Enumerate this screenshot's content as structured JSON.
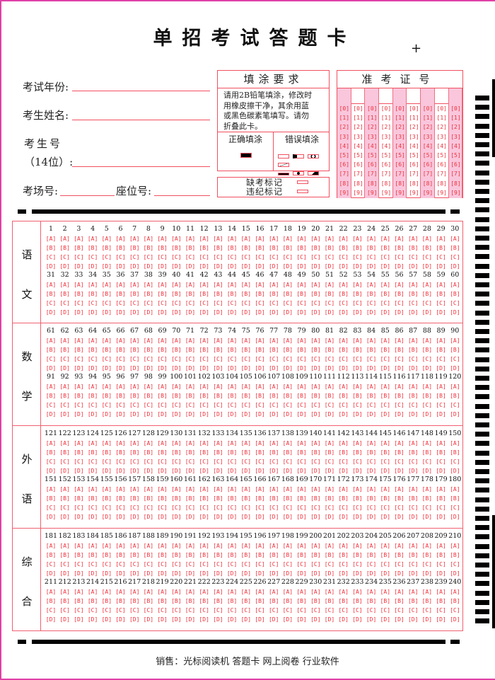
{
  "header": {
    "title": "单招考试答题卡",
    "crosshair": "+"
  },
  "fields": {
    "exam_year": "考试年份:",
    "name": "考生姓名:",
    "student_no_line1": "考生号",
    "student_no_line2": "（14位）:",
    "room_no": "考场号:",
    "seat_no": "座位号:"
  },
  "fill_rules": {
    "title": "填涂要求",
    "lines": [
      "请用2B铅笔填涂，修改时",
      "用橡皮擦干净，其余用蓝",
      "或黑色碳素笔填写。请勿",
      "折叠此卡。"
    ],
    "correct_label": "正确填涂",
    "wrong_label": "错误填涂"
  },
  "marks": {
    "absent": "缺考标记",
    "violation": "违纪标记"
  },
  "admission": {
    "title": "准考证号",
    "columns": 9,
    "digits": [
      "0",
      "1",
      "2",
      "3",
      "4",
      "5",
      "6",
      "7",
      "8",
      "9"
    ],
    "highlight_color": "#f9c6dc"
  },
  "answers": {
    "options": [
      "A",
      "B",
      "C",
      "D"
    ],
    "sections": [
      {
        "label": [
          "语",
          "文"
        ],
        "blocks": [
          {
            "start": 1,
            "end": 30
          },
          {
            "start": 31,
            "end": 60
          }
        ]
      },
      {
        "label": [
          "数",
          "学"
        ],
        "blocks": [
          {
            "start": 61,
            "end": 90
          },
          {
            "start": 91,
            "end": 120
          }
        ]
      },
      {
        "label": [
          "外",
          "语"
        ],
        "blocks": [
          {
            "start": 121,
            "end": 150
          },
          {
            "start": 151,
            "end": 180
          }
        ]
      },
      {
        "label": [
          "综",
          "合"
        ],
        "blocks": [
          {
            "start": 181,
            "end": 210
          },
          {
            "start": 211,
            "end": 240
          }
        ]
      }
    ]
  },
  "footer": {
    "text": "销售：光标阅读机 答题卡 网上阅卷 行业软件"
  },
  "colors": {
    "accent": "#f05060",
    "border": "#e040a8",
    "bubble": "#f0303a"
  }
}
